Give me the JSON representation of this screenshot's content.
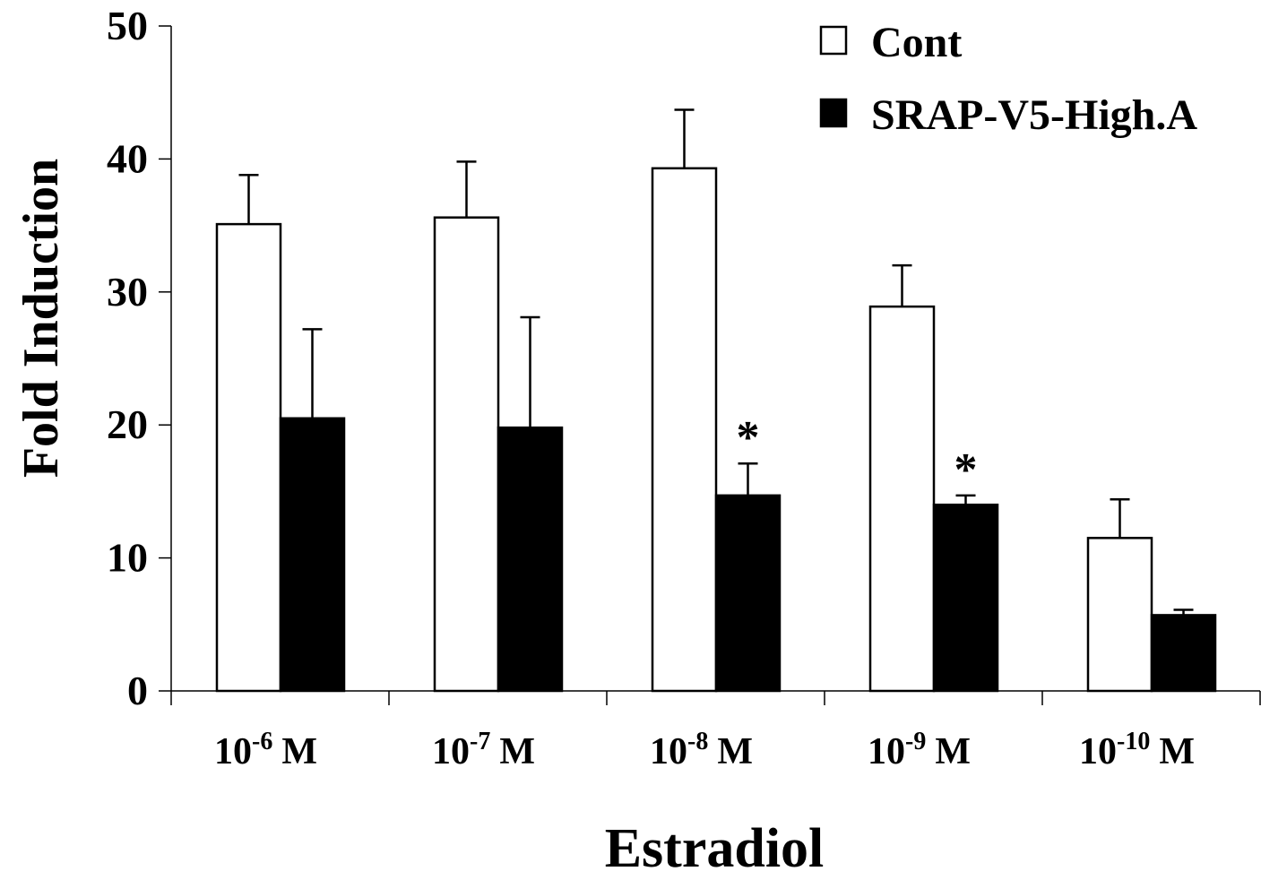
{
  "chart_data": {
    "type": "bar",
    "title": "",
    "xlabel": "Estradiol",
    "ylabel": "Fold Induction",
    "ylim": [
      0,
      50
    ],
    "yticks": [
      0,
      10,
      20,
      30,
      40,
      50
    ],
    "grid": false,
    "legend_position": "top-right",
    "categories": [
      {
        "base": "10",
        "exp": "-6",
        "unit": "M"
      },
      {
        "base": "10",
        "exp": "-7",
        "unit": "M"
      },
      {
        "base": "10",
        "exp": "-8",
        "unit": "M"
      },
      {
        "base": "10",
        "exp": "-9",
        "unit": "M"
      },
      {
        "base": "10",
        "exp": "-10",
        "unit": "M"
      }
    ],
    "series": [
      {
        "name": "Cont",
        "fill": "#ffffff",
        "stroke": "#000000",
        "values": [
          35.1,
          35.6,
          39.3,
          28.9,
          11.5
        ],
        "errors": [
          3.7,
          4.2,
          4.4,
          3.1,
          2.9
        ]
      },
      {
        "name": "SRAP-V5-High.A",
        "fill": "#000000",
        "stroke": "#000000",
        "values": [
          20.5,
          19.8,
          14.7,
          14.0,
          5.7
        ],
        "errors": [
          6.7,
          8.3,
          2.4,
          0.7,
          0.4
        ]
      }
    ],
    "annotations": [
      {
        "category_index": 2,
        "series_index": 1,
        "text": "*"
      },
      {
        "category_index": 3,
        "series_index": 1,
        "text": "*"
      }
    ]
  }
}
